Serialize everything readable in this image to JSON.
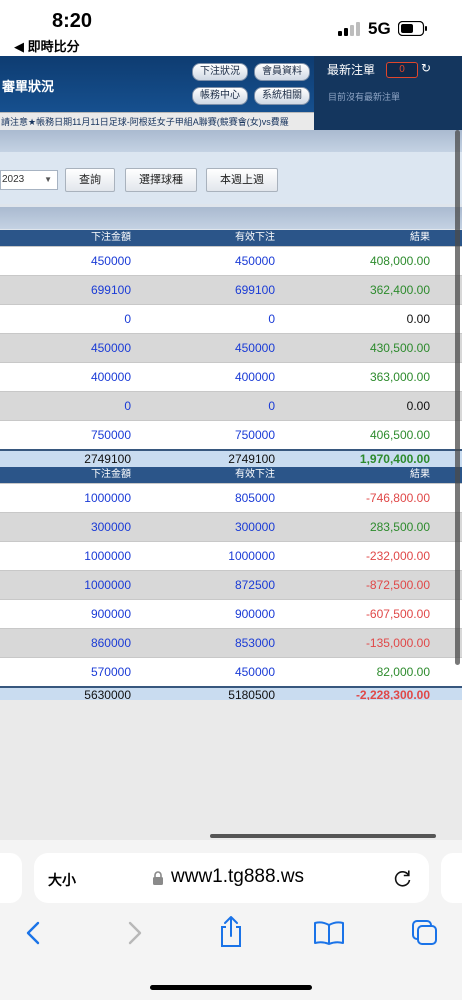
{
  "status": {
    "time": "8:20",
    "back_app": "◀ 即時比分",
    "network": "5G"
  },
  "header": {
    "title": "審單狀況",
    "buttons": [
      "下注狀況",
      "會員資料",
      "帳務中心",
      "系統相關"
    ]
  },
  "latest": {
    "title": "最新注單",
    "count": "0",
    "empty": "目前沒有最新注單"
  },
  "marquee": "請注意★帳務日期11月11日足球-阿根廷女子甲組A聯賽(競賽會(女)vs費羅",
  "filter": {
    "date": "2023",
    "buttons": [
      "查詢",
      "選擇球種",
      "本週上週"
    ]
  },
  "table1": {
    "headers": [
      "下注金額",
      "有效下注",
      "結果"
    ],
    "rows": [
      {
        "bet": "450000",
        "valid": "450000",
        "result": "408,000.00",
        "color": "green"
      },
      {
        "bet": "699100",
        "valid": "699100",
        "result": "362,400.00",
        "color": "green"
      },
      {
        "bet": "0",
        "valid": "0",
        "result": "0.00",
        "color": "black"
      },
      {
        "bet": "450000",
        "valid": "450000",
        "result": "430,500.00",
        "color": "green"
      },
      {
        "bet": "400000",
        "valid": "400000",
        "result": "363,000.00",
        "color": "green"
      },
      {
        "bet": "0",
        "valid": "0",
        "result": "0.00",
        "color": "black"
      },
      {
        "bet": "750000",
        "valid": "750000",
        "result": "406,500.00",
        "color": "green"
      }
    ],
    "total": {
      "bet": "2749100",
      "valid": "2749100",
      "result": "1,970,400.00",
      "color": "green"
    }
  },
  "table2": {
    "headers": [
      "下注金額",
      "有效下注",
      "結果"
    ],
    "rows": [
      {
        "bet": "1000000",
        "valid": "805000",
        "result": "-746,800.00",
        "color": "red"
      },
      {
        "bet": "300000",
        "valid": "300000",
        "result": "283,500.00",
        "color": "green"
      },
      {
        "bet": "1000000",
        "valid": "1000000",
        "result": "-232,000.00",
        "color": "red"
      },
      {
        "bet": "1000000",
        "valid": "872500",
        "result": "-872,500.00",
        "color": "red"
      },
      {
        "bet": "900000",
        "valid": "900000",
        "result": "-607,500.00",
        "color": "red"
      },
      {
        "bet": "860000",
        "valid": "853000",
        "result": "-135,000.00",
        "color": "red"
      },
      {
        "bet": "570000",
        "valid": "450000",
        "result": "82,000.00",
        "color": "green"
      }
    ],
    "total": {
      "bet": "5630000",
      "valid": "5180500",
      "result": "-2,228,300.00",
      "color": "red"
    }
  },
  "browser": {
    "text_size": "大小",
    "url": "www1.tg888.ws"
  },
  "icons": [
    "back-icon",
    "forward-icon",
    "share-icon",
    "bookmarks-icon",
    "tabs-icon",
    "lock-icon",
    "reload-icon"
  ],
  "colors": {
    "header": "#16508f",
    "table_header": "#2b5589",
    "positive": "#2d8b2d",
    "negative": "#e04848",
    "amount": "#1a3bd6"
  }
}
